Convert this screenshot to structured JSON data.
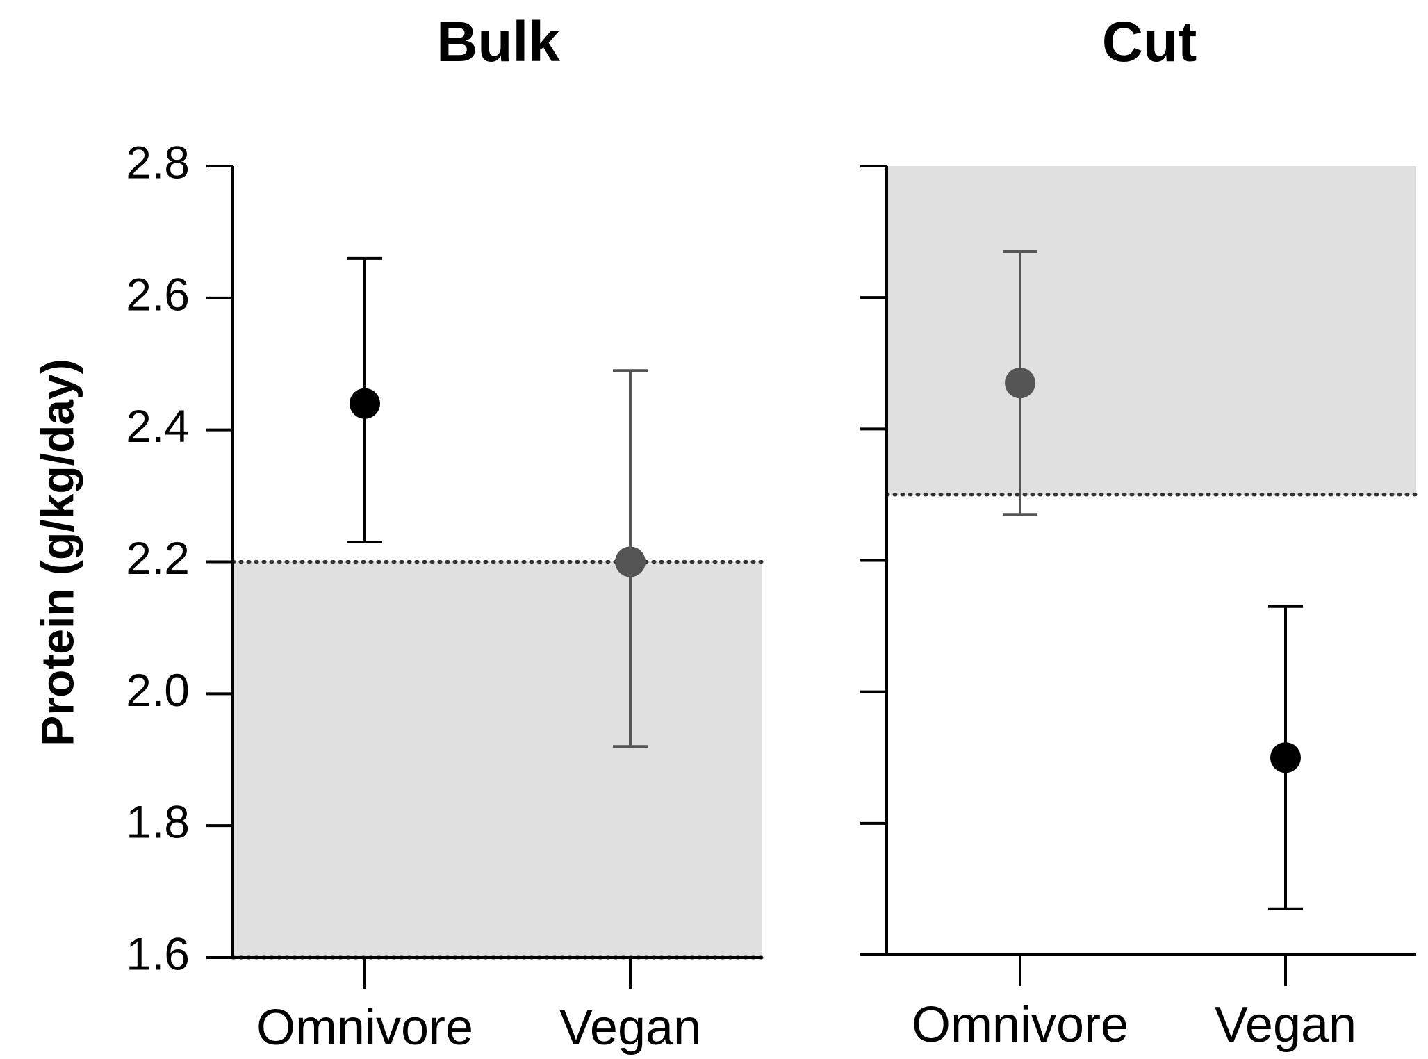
{
  "chart_data": [
    {
      "type": "scatter",
      "title": "Bulk",
      "ylabel": "Protein (g/kg/day)",
      "xlabel": "",
      "categories": [
        "Omnivore",
        "Vegan"
      ],
      "ylim": [
        1.6,
        2.8
      ],
      "yticks": [
        "1.6",
        "1.8",
        "2.0",
        "2.2",
        "2.4",
        "2.6",
        "2.8"
      ],
      "shaded_range": [
        1.6,
        2.2
      ],
      "reference_lines": [
        2.2,
        1.6
      ],
      "series": [
        {
          "values": [
            2.44,
            2.2
          ],
          "lower": [
            2.23,
            1.92
          ],
          "upper": [
            2.66,
            2.49
          ],
          "colors": [
            "#000000",
            "#555555"
          ]
        }
      ],
      "grid": false,
      "legend": "none"
    },
    {
      "type": "scatter",
      "title": "Cut",
      "ylabel": "",
      "xlabel": "",
      "categories": [
        "Omnivore",
        "Vegan"
      ],
      "ylim": [
        1.6,
        2.8
      ],
      "yticks": [
        "",
        "",
        "",
        "",
        "",
        "",
        ""
      ],
      "shaded_range": [
        2.3,
        2.8
      ],
      "reference_lines": [
        2.3
      ],
      "series": [
        {
          "values": [
            2.47,
            1.9
          ],
          "lower": [
            2.27,
            1.67
          ],
          "upper": [
            2.67,
            2.13
          ],
          "colors": [
            "#555555",
            "#000000"
          ]
        }
      ],
      "grid": false,
      "legend": "none"
    }
  ]
}
